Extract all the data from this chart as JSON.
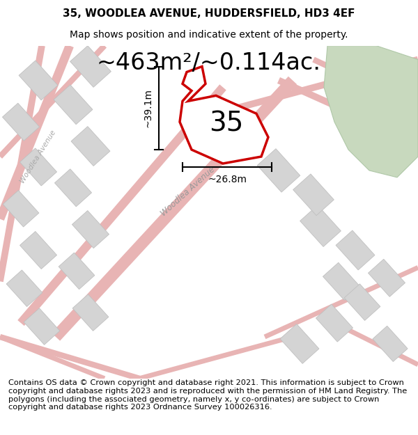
{
  "title": "35, WOODLEA AVENUE, HUDDERSFIELD, HD3 4EF",
  "subtitle": "Map shows position and indicative extent of the property.",
  "area_text": "~463m²/~0.114ac.",
  "width_label": "~26.8m",
  "height_label": "~39.1m",
  "number_label": "35",
  "footer_text": "Contains OS data © Crown copyright and database right 2021. This information is subject to Crown copyright and database rights 2023 and is reproduced with the permission of HM Land Registry. The polygons (including the associated geometry, namely x, y co-ordinates) are subject to Crown copyright and database rights 2023 Ordnance Survey 100026316.",
  "map_bg": "#eeede9",
  "plot_color": "#cc0000",
  "road_color": "#e8b4b4",
  "building_color": "#d4d4d4",
  "building_edge": "#c0c0c0",
  "green_color": "#c8d9be",
  "green_edge": "#b0c8a8",
  "title_fontsize": 11,
  "subtitle_fontsize": 10,
  "area_fontsize": 24,
  "number_fontsize": 28,
  "footer_fontsize": 8.2,
  "measure_fontsize": 10,
  "road_label_fontsize": 8.5
}
